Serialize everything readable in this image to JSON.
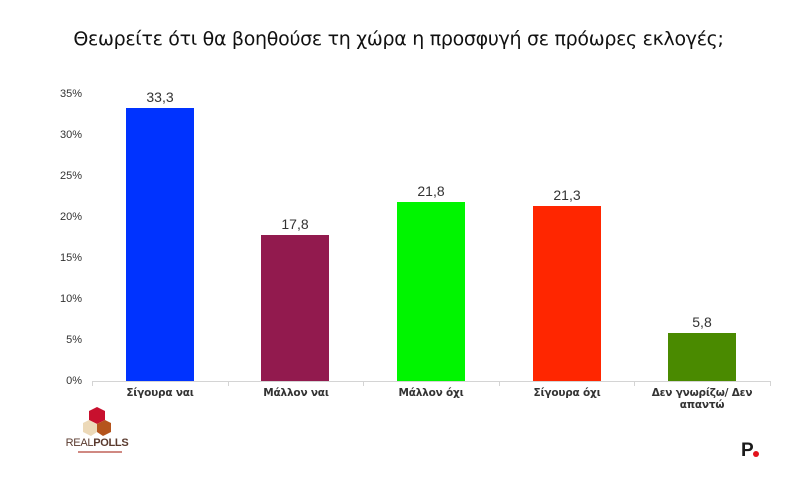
{
  "chart_data": {
    "type": "bar",
    "title": "Θεωρείτε ότι θα βοηθούσε τη χώρα η προσφυγή σε πρόωρες εκλογές;",
    "xlabel": "",
    "ylabel": "",
    "ylim": [
      0,
      35
    ],
    "yticks": [
      "0%",
      "5%",
      "10%",
      "15%",
      "20%",
      "25%",
      "30%",
      "35%"
    ],
    "grid": false,
    "legend": null,
    "categories": [
      "Σίγουρα ναι",
      "Μάλλον ναι",
      "Μάλλον όχι",
      "Σίγουρα όχι",
      "Δεν γνωρίζω/ Δεν απαντώ"
    ],
    "values": [
      33.3,
      17.8,
      21.8,
      21.3,
      5.8
    ],
    "value_labels": [
      "33,3",
      "17,8",
      "21,8",
      "21,3",
      "5,8"
    ],
    "colors": [
      "#0033ff",
      "#921a4e",
      "#00f500",
      "#ff2600",
      "#4a8a00"
    ]
  },
  "header": {
    "title": "Θεωρείτε ότι θα βοηθούσε τη χώρα η προσφυγή σε πρόωρες εκλογές;"
  },
  "footer": {
    "left_logo": {
      "name": "realpolls-logo",
      "text_light": "REAL",
      "text_bold": "POLLS"
    },
    "right_logo": {
      "name": "protagon-logo",
      "text": "P"
    }
  }
}
